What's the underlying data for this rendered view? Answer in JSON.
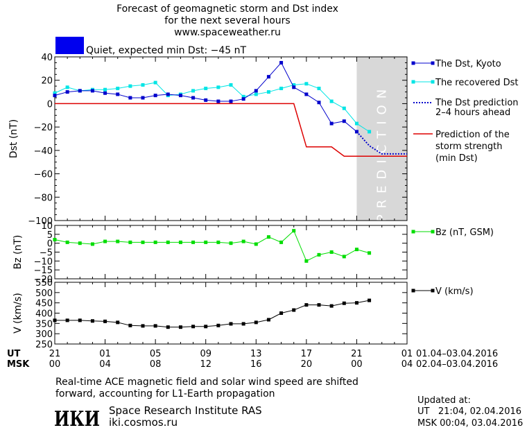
{
  "header": {
    "title_lines": [
      "Forecast of geomagnetic storm and Dst index",
      "for the next several hours",
      "www.spaceweather.ru"
    ],
    "status_text": "Quiet, expected min Dst: −45 nT",
    "status_color": "#0000ee"
  },
  "axis_labels": {
    "dst": "Dst (nT)",
    "bz": "Bz (nT)",
    "v": "V (km/s)",
    "prediction_band": "PREDICTION"
  },
  "time_axis": {
    "ut_label": "UT",
    "msk_label": "MSK",
    "ut_ticks": [
      "21",
      "01",
      "05",
      "09",
      "13",
      "17",
      "21",
      "01"
    ],
    "msk_ticks": [
      "00",
      "04",
      "08",
      "12",
      "16",
      "20",
      "00",
      "04"
    ],
    "ut_range": "01.04–03.04.2016",
    "msk_range": "02.04–03.04.2016"
  },
  "legend": {
    "dst_kyoto": "The Dst, Kyoto",
    "dst_recovered": "The recovered Dst",
    "dst_prediction": [
      "The Dst prediction",
      "2–4 hours ahead"
    ],
    "storm_strength": [
      "Prediction of the",
      "storm strength",
      "(min Dst)"
    ],
    "bz": "Bz (nT, GSM)",
    "v": "V (km/s)"
  },
  "footer": {
    "note_lines": [
      "Real-time ACE magnetic field and solar wind speed are shifted",
      "forward, accounting for L1-Earth propagation"
    ],
    "institute": "Space Research Institute RAS",
    "site": "iki.cosmos.ru",
    "logo_text": "ИКИ",
    "updated_label": "Updated at:",
    "updated_ut": "UT   21:04, 02.04.2016",
    "updated_msk": "MSK 00:04, 03.04.2016"
  },
  "colors": {
    "kyoto": "#0000cc",
    "recovered": "#00e5e5",
    "prediction": "#0000cc",
    "storm": "#dd0000",
    "bz": "#00dd00",
    "v": "#000000",
    "band": "#d8d8d8"
  },
  "chart_data": [
    {
      "type": "line",
      "title": "Forecast of geomagnetic storm and Dst index",
      "ylabel": "Dst (nT)",
      "ylim": [
        -100,
        40
      ],
      "xlim": [
        0,
        28
      ],
      "yticks": [
        40,
        20,
        0,
        -20,
        -40,
        -60,
        -80,
        -100
      ],
      "prediction_band_x": [
        24,
        28
      ],
      "series": [
        {
          "name": "The Dst, Kyoto",
          "x": [
            0,
            1,
            2,
            3,
            4,
            5,
            6,
            7,
            8,
            9,
            10,
            11,
            12,
            13,
            14,
            15,
            16,
            17,
            18,
            19,
            20,
            21,
            22,
            23,
            24
          ],
          "y": [
            7,
            10,
            11,
            11,
            9,
            8,
            5,
            5,
            7,
            8,
            7,
            5,
            3,
            2,
            2,
            4,
            11,
            23,
            35,
            14,
            8,
            1,
            -17,
            -15,
            -24
          ]
        },
        {
          "name": "The recovered Dst",
          "x": [
            0,
            1,
            2,
            3,
            4,
            5,
            6,
            7,
            8,
            9,
            10,
            11,
            12,
            13,
            14,
            15,
            16,
            17,
            18,
            19,
            20,
            21,
            22,
            23,
            24,
            25
          ],
          "y": [
            9,
            14,
            11,
            12,
            12,
            13,
            15,
            16,
            18,
            7,
            8,
            11,
            13,
            14,
            16,
            6,
            8,
            10,
            13,
            16,
            17,
            13,
            2,
            -4,
            -17,
            -24
          ]
        },
        {
          "name": "The Dst prediction 2–4 hours ahead",
          "x": [
            24,
            25,
            26,
            27,
            28
          ],
          "y": [
            -24,
            -36,
            -43,
            -43,
            -43
          ]
        },
        {
          "name": "Prediction of the storm strength (min Dst)",
          "x": [
            0,
            19,
            20,
            22,
            23,
            28
          ],
          "y": [
            0,
            0,
            -37,
            -37,
            -45,
            -45
          ]
        }
      ]
    },
    {
      "type": "line",
      "ylabel": "Bz (nT)",
      "ylim": [
        -20,
        10
      ],
      "xlim": [
        0,
        28
      ],
      "yticks": [
        10,
        5,
        0,
        -5,
        -10,
        -15,
        -20
      ],
      "series": [
        {
          "name": "Bz (nT, GSM)",
          "x": [
            0,
            1,
            2,
            3,
            4,
            5,
            6,
            7,
            8,
            9,
            10,
            11,
            12,
            13,
            14,
            15,
            16,
            17,
            18,
            19,
            20,
            21,
            22,
            23,
            24,
            25
          ],
          "y": [
            2,
            0.5,
            0,
            -0.5,
            1,
            1,
            0.5,
            0.5,
            0.5,
            0.5,
            0.5,
            0.5,
            0.5,
            0.5,
            0,
            1,
            -0.5,
            3.5,
            0.5,
            7,
            -10,
            -6.5,
            -5,
            -7.5,
            -3.5,
            -5.5
          ]
        }
      ]
    },
    {
      "type": "line",
      "ylabel": "V (km/s)",
      "ylim": [
        250,
        550
      ],
      "xlim": [
        0,
        28
      ],
      "yticks": [
        550,
        500,
        450,
        400,
        350,
        300,
        250
      ],
      "series": [
        {
          "name": "V (km/s)",
          "x": [
            0,
            1,
            2,
            3,
            4,
            5,
            6,
            7,
            8,
            9,
            10,
            11,
            12,
            13,
            14,
            15,
            16,
            17,
            18,
            19,
            20,
            21,
            22,
            23,
            24,
            25
          ],
          "y": [
            365,
            365,
            365,
            362,
            360,
            355,
            340,
            338,
            338,
            332,
            332,
            335,
            335,
            340,
            348,
            348,
            355,
            368,
            400,
            415,
            440,
            440,
            435,
            448,
            450,
            462
          ]
        }
      ]
    }
  ]
}
